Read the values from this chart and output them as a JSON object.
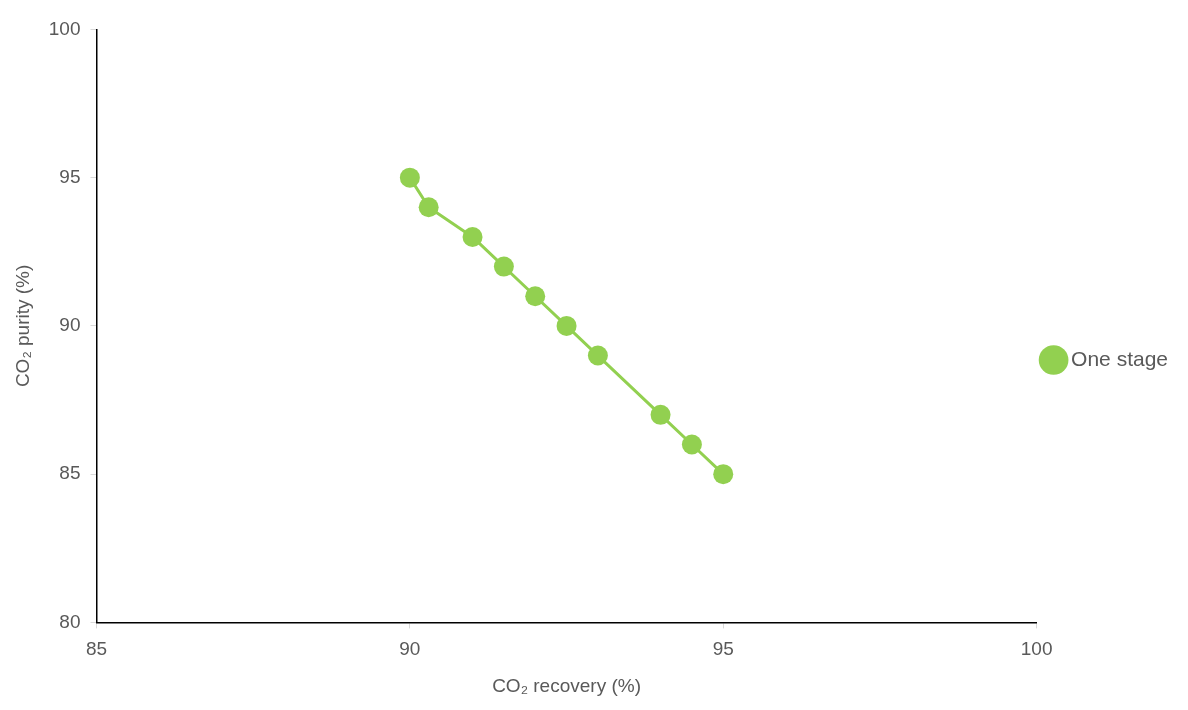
{
  "chart_data": {
    "type": "scatter",
    "xlabel": "CO₂ recovery (%)",
    "ylabel": "CO₂ purity (%)",
    "series": [
      {
        "name": "One stage",
        "color": "#92d050",
        "type": "line",
        "x": [
          90,
          90.3,
          91,
          91.5,
          92,
          92.5,
          93,
          94,
          94.5,
          95
        ],
        "values": [
          95,
          94,
          93,
          92,
          91,
          90,
          89,
          87,
          86,
          85
        ]
      }
    ],
    "xlim": [
      85,
      100
    ],
    "xticks": [
      85,
      90,
      95,
      100
    ],
    "ylim": [
      80,
      100
    ],
    "yticks": [
      80,
      85,
      90,
      95,
      100
    ],
    "grid": false,
    "legend": "right",
    "marker": "circle",
    "line_style": "solid"
  }
}
